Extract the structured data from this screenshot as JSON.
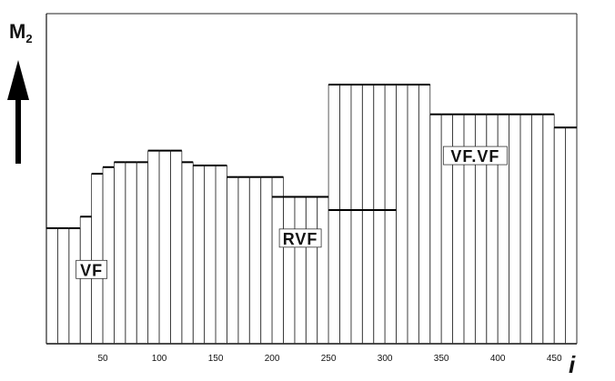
{
  "chart_data": {
    "type": "bar",
    "title": "",
    "ylabel": "M",
    "ylabel_subscript": "2",
    "xlabel": "i",
    "xlim": [
      0,
      470
    ],
    "ylim": [
      0,
      100
    ],
    "xticks": [
      50,
      100,
      150,
      200,
      250,
      300,
      350,
      400,
      450
    ],
    "grid": false,
    "bar_width": 10,
    "bars": [
      {
        "x": 5,
        "value": 35
      },
      {
        "x": 15,
        "value": 35
      },
      {
        "x": 25,
        "value": 35
      },
      {
        "x": 35,
        "value": 38.5
      },
      {
        "x": 45,
        "value": 51.5
      },
      {
        "x": 55,
        "value": 53.5
      },
      {
        "x": 65,
        "value": 55
      },
      {
        "x": 75,
        "value": 55
      },
      {
        "x": 85,
        "value": 55
      },
      {
        "x": 95,
        "value": 58.5
      },
      {
        "x": 105,
        "value": 58.5
      },
      {
        "x": 115,
        "value": 58.5
      },
      {
        "x": 125,
        "value": 55
      },
      {
        "x": 135,
        "value": 54
      },
      {
        "x": 145,
        "value": 54
      },
      {
        "x": 155,
        "value": 54
      },
      {
        "x": 165,
        "value": 50.5
      },
      {
        "x": 175,
        "value": 50.5
      },
      {
        "x": 185,
        "value": 50.5
      },
      {
        "x": 195,
        "value": 50.5
      },
      {
        "x": 205,
        "value": 50.5
      },
      {
        "x": 215,
        "value": 44.5
      },
      {
        "x": 225,
        "value": 44.5
      },
      {
        "x": 235,
        "value": 44.5
      },
      {
        "x": 245,
        "value": 44.5
      },
      {
        "x": 255,
        "value": 78.5
      },
      {
        "x": 265,
        "value": 78.5
      },
      {
        "x": 275,
        "value": 78.5
      },
      {
        "x": 285,
        "value": 78.5
      },
      {
        "x": 295,
        "value": 78.5
      },
      {
        "x": 305,
        "value": 78.5
      },
      {
        "x": 315,
        "value": 78.5
      },
      {
        "x": 325,
        "value": 78.5
      },
      {
        "x": 335,
        "value": 78.5
      },
      {
        "x": 345,
        "value": 69.5
      },
      {
        "x": 355,
        "value": 69.5
      },
      {
        "x": 365,
        "value": 69.5
      },
      {
        "x": 375,
        "value": 69.5
      },
      {
        "x": 385,
        "value": 69.5
      },
      {
        "x": 395,
        "value": 69.5
      },
      {
        "x": 405,
        "value": 69.5
      },
      {
        "x": 415,
        "value": 69.5
      },
      {
        "x": 425,
        "value": 69.5
      },
      {
        "x": 435,
        "value": 69.5
      },
      {
        "x": 445,
        "value": 69.5
      },
      {
        "x": 455,
        "value": 65.5
      },
      {
        "x": 465,
        "value": 65.5
      }
    ],
    "overlay_levels": [
      {
        "x_start": 200,
        "x_end": 250,
        "value": 44.5
      },
      {
        "x_start": 250,
        "x_end": 310,
        "value": 40.5
      }
    ],
    "region_labels": [
      {
        "text": "VF",
        "x": 40,
        "y": 22.5
      },
      {
        "text": "RVF",
        "x": 225,
        "y": 32
      },
      {
        "text": "VF.VF",
        "x": 380,
        "y": 57
      }
    ]
  }
}
